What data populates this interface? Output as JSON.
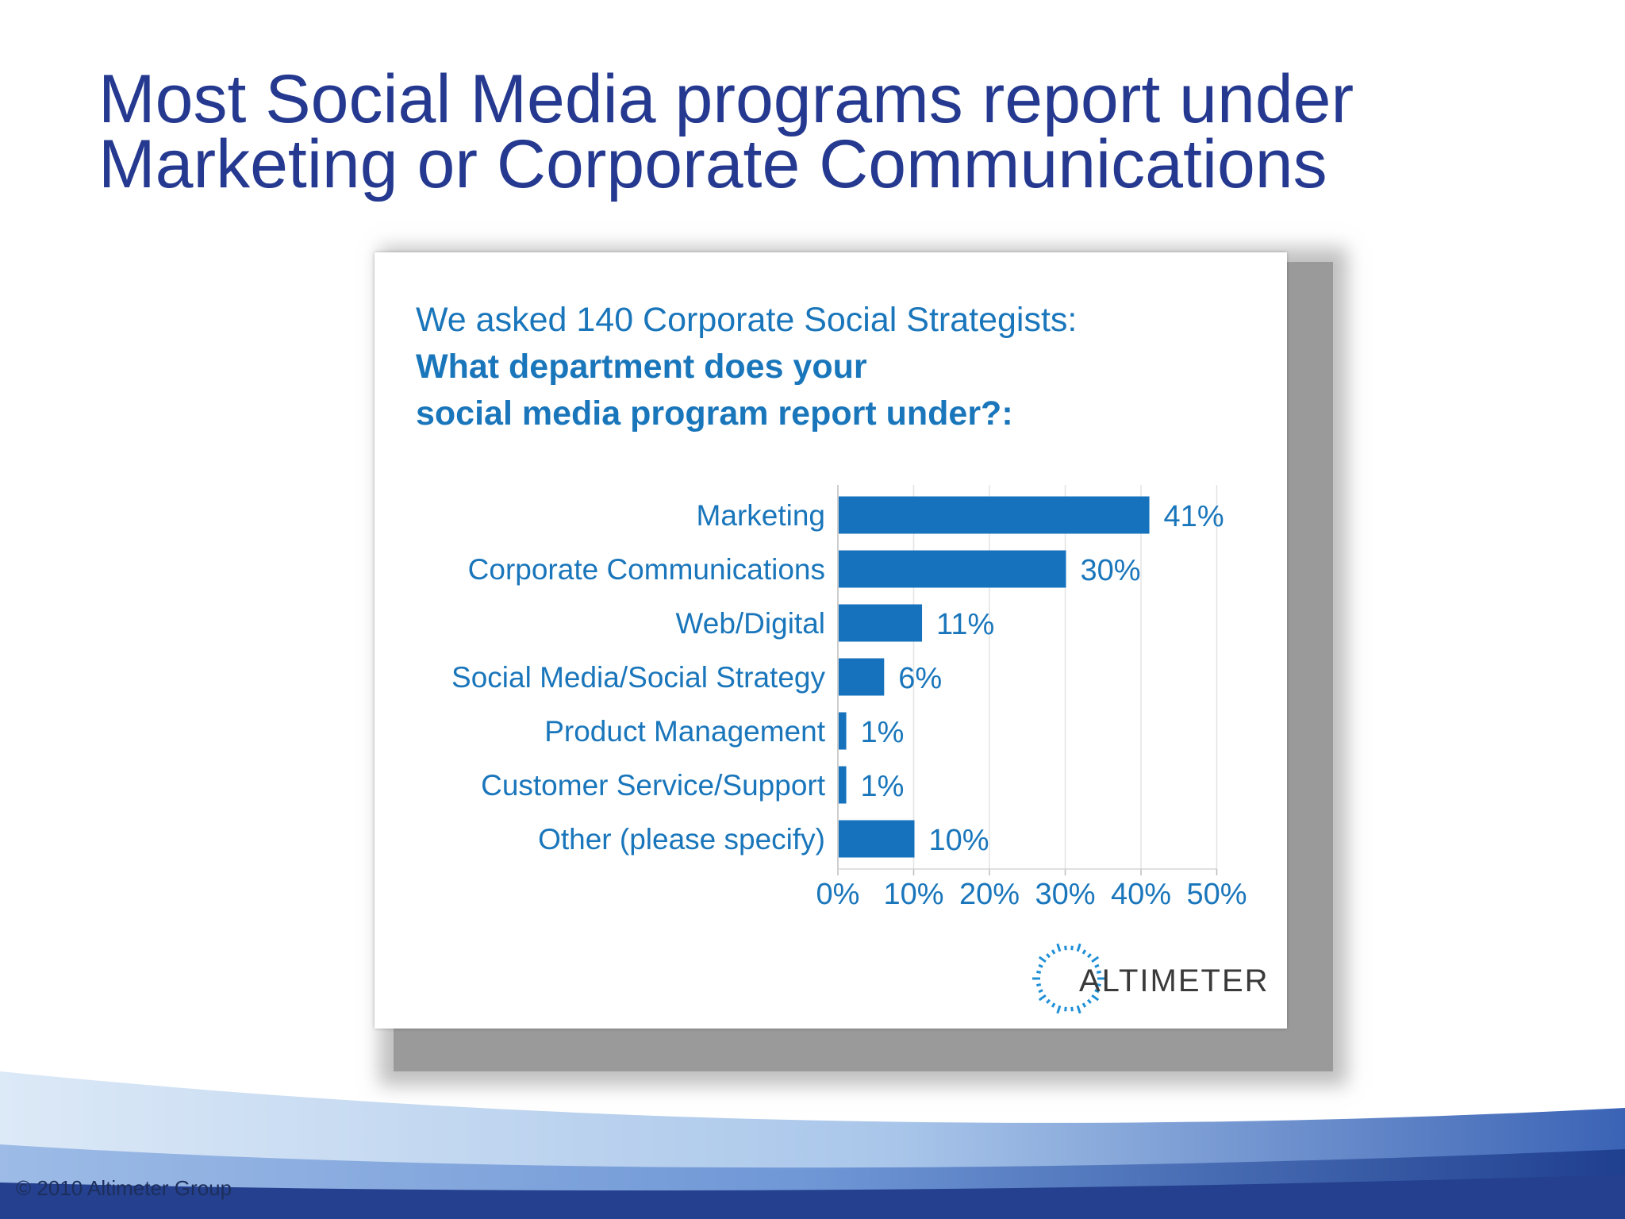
{
  "slide": {
    "title_lines": [
      "Most Social Media programs report under",
      "Marketing or Corporate Communications"
    ],
    "copyright": "© 2010 Altimeter Group"
  },
  "card": {
    "question_lines": [
      "We asked 140 Corporate Social Strategists:",
      "What department does your",
      "social media program report under?:"
    ],
    "logo_text": "ALTIMETER"
  },
  "colors": {
    "title": "#24398f",
    "accent": "#1a76bb",
    "bar": "#1672bd"
  },
  "chart_data": {
    "type": "bar",
    "orientation": "horizontal",
    "categories": [
      "Marketing",
      "Corporate Communications",
      "Web/Digital",
      "Social Media/Social Strategy",
      "Product Management",
      "Customer Service/Support",
      "Other (please specify)"
    ],
    "values": [
      41,
      30,
      11,
      6,
      1,
      1,
      10
    ],
    "value_labels": [
      "41%",
      "30%",
      "11%",
      "6%",
      "1%",
      "1%",
      "10%"
    ],
    "x_ticks": [
      "0%",
      "10%",
      "20%",
      "30%",
      "40%",
      "50%"
    ],
    "xlim": [
      0,
      50
    ],
    "grid": true
  }
}
